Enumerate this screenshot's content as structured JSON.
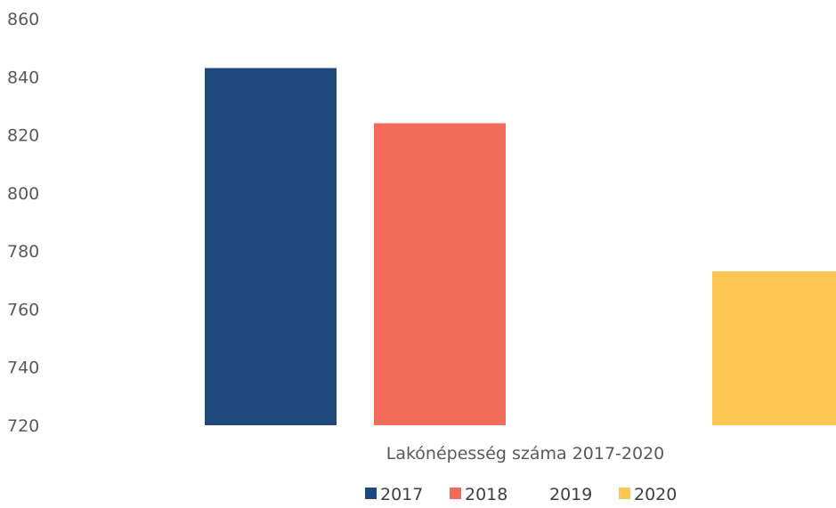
{
  "chart_data": {
    "type": "bar",
    "xlabel": "Lakónépesség száma 2017-2020",
    "ylabel": "",
    "ylim": [
      720,
      860
    ],
    "yticks": [
      720,
      740,
      760,
      780,
      800,
      820,
      840,
      860
    ],
    "grid": false,
    "legend_position": "bottom",
    "series": [
      {
        "name": "2017",
        "values": [
          843
        ],
        "color": "#1F497D"
      },
      {
        "name": "2018",
        "values": [
          824
        ],
        "color": "#F26B5B"
      },
      {
        "name": "2019",
        "values": [
          null
        ],
        "color": "#FFFFFF"
      },
      {
        "name": "2020",
        "values": [
          773
        ],
        "color": "#FFC552"
      }
    ]
  }
}
